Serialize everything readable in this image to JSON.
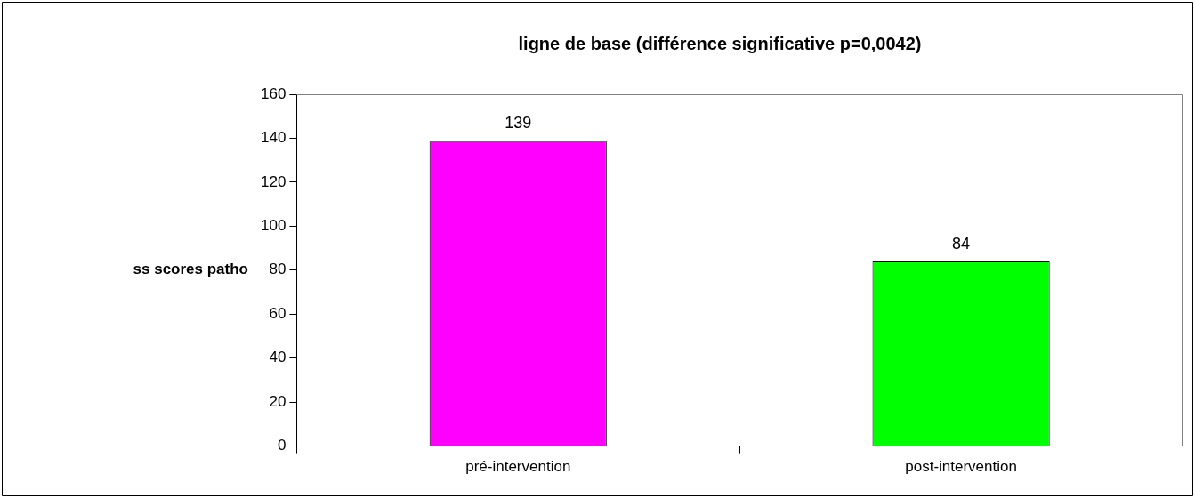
{
  "chart_data": {
    "type": "bar",
    "title": "ligne de base (différence significative p=0,0042)",
    "ylabel": "ss scores patho",
    "categories": [
      "pré-intervention",
      "post-intervention"
    ],
    "values": [
      139,
      84
    ],
    "colors": [
      "#ff00ff",
      "#00ff00"
    ],
    "ylim": [
      0,
      160
    ],
    "yticks": [
      0,
      20,
      40,
      60,
      80,
      100,
      120,
      140,
      160
    ],
    "grid": false,
    "legend": false,
    "data_labels": true
  }
}
